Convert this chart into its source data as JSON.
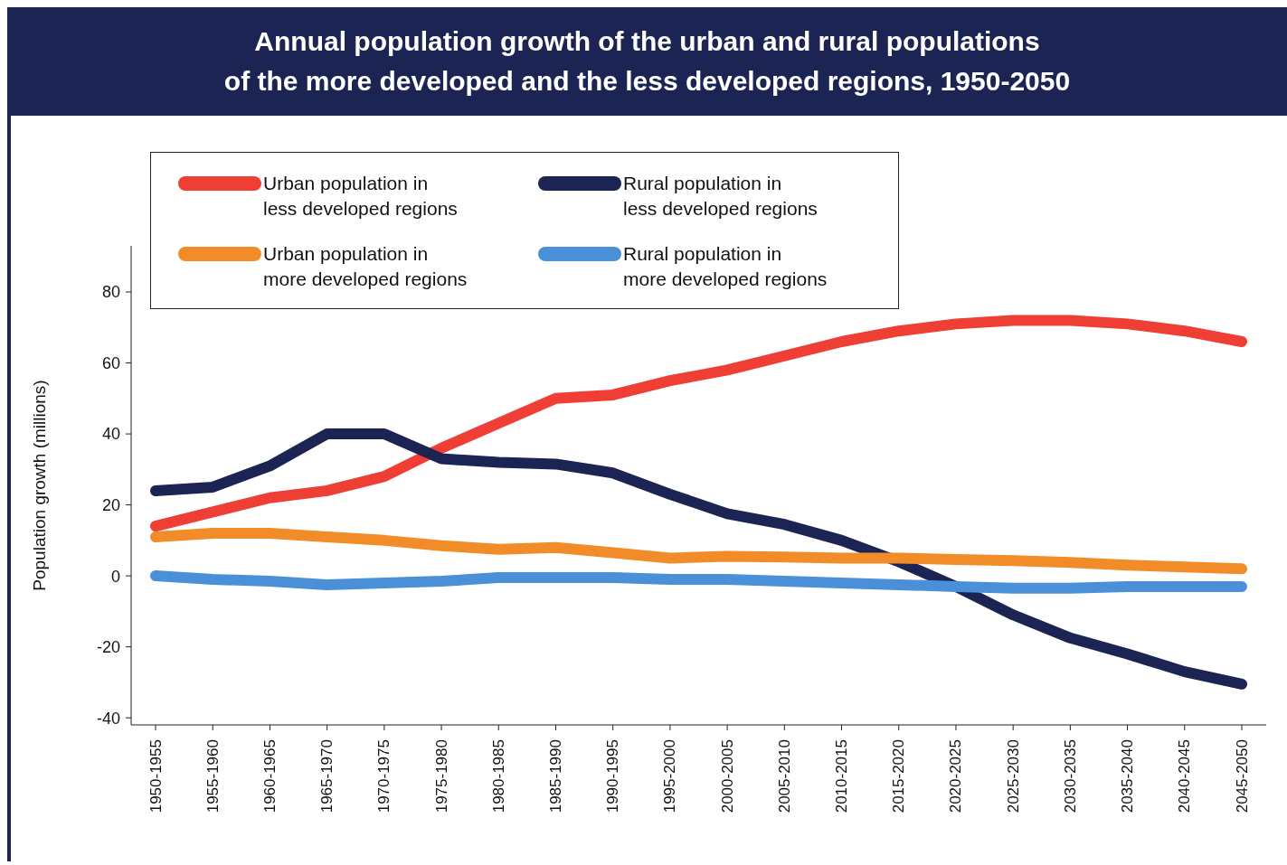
{
  "chart_data": {
    "type": "line",
    "title": "Annual population growth of the urban and rural populations\nof the more developed and the less developed regions, 1950-2050",
    "ylabel": "Population growth (millions)",
    "categories": [
      "1950-1955",
      "1955-1960",
      "1960-1965",
      "1965-1970",
      "1970-1975",
      "1975-1980",
      "1980-1985",
      "1985-1990",
      "1990-1995",
      "1995-2000",
      "2000-2005",
      "2005-2010",
      "2010-2015",
      "2015-2020",
      "2020-2025",
      "2025-2030",
      "2030-2035",
      "2035-2040",
      "2040-2045",
      "2045-2050"
    ],
    "series": [
      {
        "name": "Urban population in\nless developed regions",
        "color": "#ef3e33",
        "values": [
          14,
          18,
          22,
          24,
          28,
          36,
          43,
          50,
          51,
          55,
          58,
          62,
          66,
          69,
          71,
          72,
          72,
          71,
          69,
          66
        ]
      },
      {
        "name": "Rural population in\nless developed regions",
        "color": "#1b2452",
        "values": [
          24,
          25,
          31,
          40,
          40,
          33,
          32,
          31.5,
          29,
          23,
          17.5,
          14.5,
          10,
          4,
          -3,
          -11,
          -17.5,
          -22,
          -27,
          -30.5
        ]
      },
      {
        "name": "Urban population in\nmore developed regions",
        "color": "#f28c28",
        "values": [
          11,
          12,
          12,
          11,
          10,
          8.5,
          7.5,
          8,
          6.5,
          5,
          5.5,
          5.3,
          5,
          5,
          4.6,
          4.3,
          3.8,
          3,
          2.5,
          2
        ]
      },
      {
        "name": "Rural population in\nmore developed regions",
        "color": "#4a90d9",
        "values": [
          0,
          -1,
          -1.5,
          -2.5,
          -2,
          -1.5,
          -0.5,
          -0.5,
          -0.5,
          -1,
          -1,
          -1.5,
          -2,
          -2.5,
          -3,
          -3.5,
          -3.5,
          -3,
          -3,
          -3
        ]
      }
    ],
    "ylim": [
      -42,
      93
    ],
    "yticks": [
      -40,
      -20,
      0,
      20,
      40,
      60,
      80
    ],
    "grid": false,
    "legend": "top left",
    "marker": "none",
    "line_style": "solid"
  }
}
